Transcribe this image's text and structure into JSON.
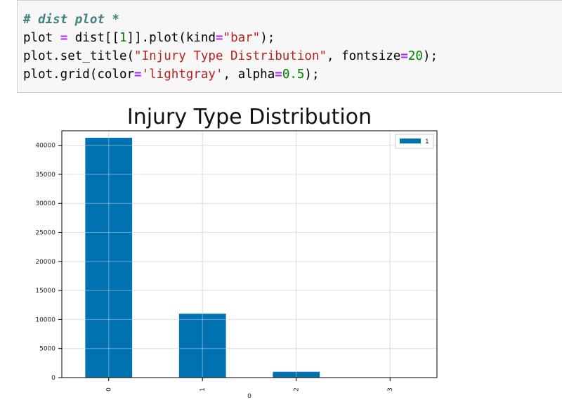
{
  "code_cell": {
    "lines": [
      [
        {
          "t": "# dist plot *",
          "c": "cm"
        }
      ],
      [
        {
          "t": "plot ",
          "c": "plain"
        },
        {
          "t": "=",
          "c": "op"
        },
        {
          "t": " dist[[",
          "c": "plain"
        },
        {
          "t": "1",
          "c": "num"
        },
        {
          "t": "]].plot(kind",
          "c": "plain"
        },
        {
          "t": "=",
          "c": "op"
        },
        {
          "t": "\"bar\"",
          "c": "str"
        },
        {
          "t": ");",
          "c": "plain"
        }
      ],
      [
        {
          "t": "plot.set_title(",
          "c": "plain"
        },
        {
          "t": "\"Injury Type Distribution\"",
          "c": "str"
        },
        {
          "t": ", fontsize",
          "c": "plain"
        },
        {
          "t": "=",
          "c": "op"
        },
        {
          "t": "20",
          "c": "num"
        },
        {
          "t": ");",
          "c": "plain"
        }
      ],
      [
        {
          "t": "plot.grid(color",
          "c": "plain"
        },
        {
          "t": "=",
          "c": "op"
        },
        {
          "t": "'lightgray'",
          "c": "str"
        },
        {
          "t": ", alpha",
          "c": "plain"
        },
        {
          "t": "=",
          "c": "op"
        },
        {
          "t": "0.5",
          "c": "num"
        },
        {
          "t": ");",
          "c": "plain"
        }
      ]
    ]
  },
  "chart_data": {
    "type": "bar",
    "title": "Injury Type Distribution",
    "xlabel": "0",
    "ylabel": "",
    "categories": [
      "0",
      "1",
      "2",
      "3"
    ],
    "series": [
      {
        "name": "1",
        "values": [
          41300,
          11000,
          1000,
          50
        ],
        "color": "#0072b2"
      }
    ],
    "ylim": [
      0,
      42500
    ],
    "yticks": [
      0,
      5000,
      10000,
      15000,
      20000,
      25000,
      30000,
      35000,
      40000
    ],
    "grid": true,
    "grid_color": "#e6e6e6",
    "legend_position": "top-right"
  }
}
